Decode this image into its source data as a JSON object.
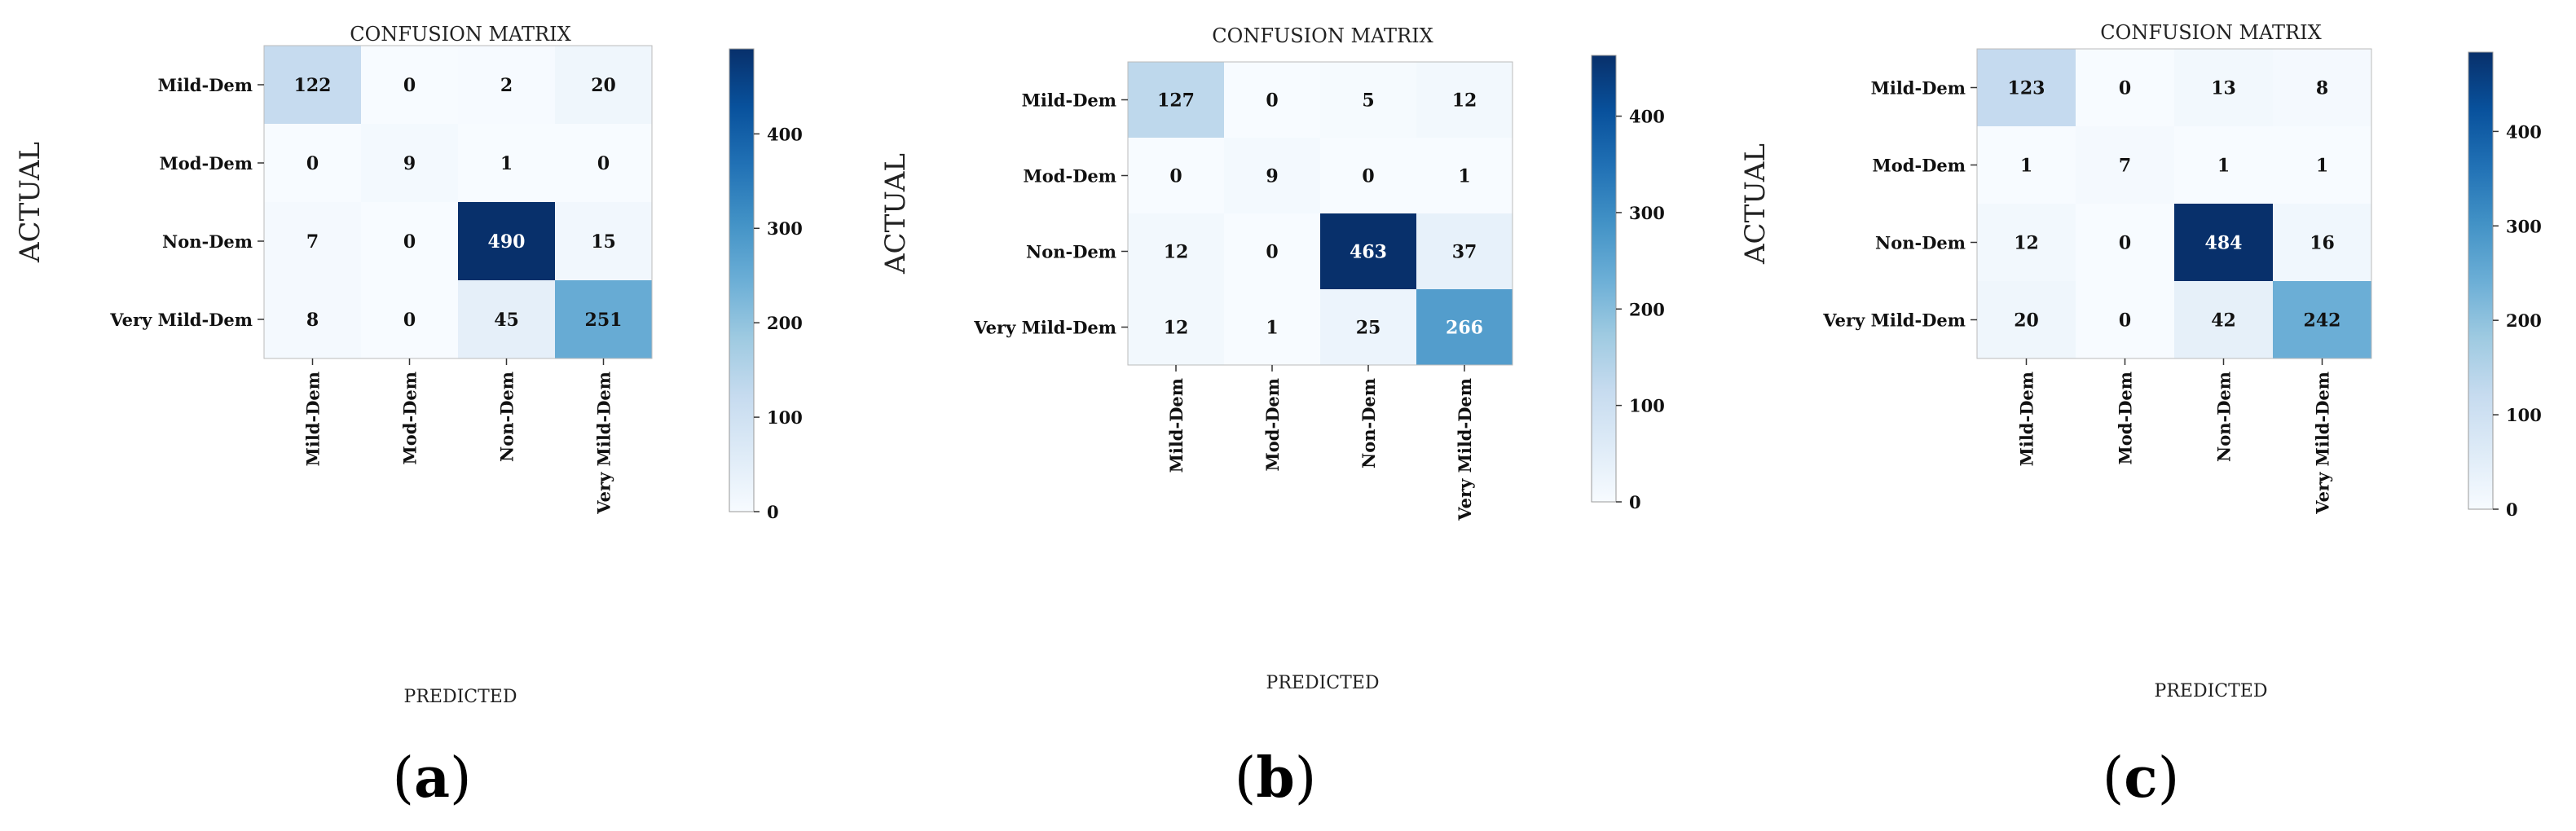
{
  "figure": {
    "panels": [
      {
        "label": "a"
      },
      {
        "label": "b"
      },
      {
        "label": "c"
      }
    ]
  },
  "chart_data": [
    {
      "type": "heatmap",
      "title": "CONFUSION MATRIX",
      "xlabel": "PREDICTED",
      "ylabel": "ACTUAL",
      "x_categories": [
        "Mild-Dem",
        "Mod-Dem",
        "Non-Dem",
        "Very Mild-Dem"
      ],
      "y_categories": [
        "Mild-Dem",
        "Mod-Dem",
        "Non-Dem",
        "Very Mild-Dem"
      ],
      "values": [
        [
          122,
          0,
          2,
          20
        ],
        [
          0,
          9,
          1,
          0
        ],
        [
          7,
          0,
          490,
          15
        ],
        [
          8,
          0,
          45,
          251
        ]
      ],
      "colorbar": {
        "min": 0,
        "max": 490,
        "ticks": [
          0,
          100,
          200,
          300,
          400
        ]
      },
      "colormap": [
        "#f7fbff",
        "#deebf7",
        "#c6dbef",
        "#9ecae1",
        "#6baed6",
        "#4292c6",
        "#2171b5",
        "#08519c",
        "#08306b"
      ]
    },
    {
      "type": "heatmap",
      "title": "CONFUSION MATRIX",
      "xlabel": "PREDICTED",
      "ylabel": "ACTUAL",
      "x_categories": [
        "Mild-Dem",
        "Mod-Dem",
        "Non-Dem",
        "Very Mild-Dem"
      ],
      "y_categories": [
        "Mild-Dem",
        "Mod-Dem",
        "Non-Dem",
        "Very Mild-Dem"
      ],
      "values": [
        [
          127,
          0,
          5,
          12
        ],
        [
          0,
          9,
          0,
          1
        ],
        [
          12,
          0,
          463,
          37
        ],
        [
          12,
          1,
          25,
          266
        ]
      ],
      "colorbar": {
        "min": 0,
        "max": 463,
        "ticks": [
          0,
          100,
          200,
          300,
          400
        ]
      },
      "colormap": [
        "#f7fbff",
        "#deebf7",
        "#c6dbef",
        "#9ecae1",
        "#6baed6",
        "#4292c6",
        "#2171b5",
        "#08519c",
        "#08306b"
      ]
    },
    {
      "type": "heatmap",
      "title": "CONFUSION MATRIX",
      "xlabel": "PREDICTED",
      "ylabel": "ACTUAL",
      "x_categories": [
        "Mild-Dem",
        "Mod-Dem",
        "Non-Dem",
        "Very Mild-Dem"
      ],
      "y_categories": [
        "Mild-Dem",
        "Mod-Dem",
        "Non-Dem",
        "Very Mild-Dem"
      ],
      "values": [
        [
          123,
          0,
          13,
          8
        ],
        [
          1,
          7,
          1,
          1
        ],
        [
          12,
          0,
          484,
          16
        ],
        [
          20,
          0,
          42,
          242
        ]
      ],
      "colorbar": {
        "min": 0,
        "max": 484,
        "ticks": [
          0,
          100,
          200,
          300,
          400
        ]
      },
      "colormap": [
        "#f7fbff",
        "#deebf7",
        "#c6dbef",
        "#9ecae1",
        "#6baed6",
        "#4292c6",
        "#2171b5",
        "#08519c",
        "#08306b"
      ]
    }
  ]
}
